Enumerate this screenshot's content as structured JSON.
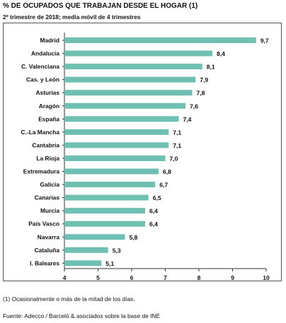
{
  "chart_data": {
    "type": "bar",
    "orientation": "horizontal",
    "title": "% DE OCUPADOS QUE TRABAJAN DESDE EL HOGAR (1)",
    "subtitle": "2º trimestre de 2018; media móvil de 4 trimestres",
    "categories": [
      "Madrid",
      "Andalucía",
      "C. Valenciana",
      "Cas. y León",
      "Asturias",
      "Aragón",
      "España",
      "C.-La Mancha",
      "Cantabria",
      "La Rioja",
      "Extremadura",
      "Galicia",
      "Canarias",
      "Murcia",
      "País Vasco",
      "Navarra",
      "Cataluña",
      "I. Baleares"
    ],
    "values": [
      9.7,
      8.4,
      8.1,
      7.9,
      7.8,
      7.6,
      7.4,
      7.1,
      7.1,
      7.0,
      6.8,
      6.7,
      6.5,
      6.4,
      6.4,
      5.8,
      5.3,
      5.1
    ],
    "value_labels": [
      "9,7",
      "8,4",
      "8,1",
      "7,9",
      "7,8",
      "7,6",
      "7,4",
      "7,1",
      "7,1",
      "7,0",
      "6,8",
      "6,7",
      "6,5",
      "6,4",
      "6,4",
      "5,8",
      "5,3",
      "5,1"
    ],
    "xlim": [
      4,
      10
    ],
    "xticks": [
      4,
      5,
      6,
      7,
      8,
      9,
      10
    ],
    "xlabel": "",
    "ylabel": "",
    "grid": false,
    "legend": "none",
    "bar_color": "#6fbfb2"
  },
  "footnote": "(1) Ocasionalmente o más de la mitad de los días.",
  "source": "Fuente: Adecco / Barceló & asociados sobre la base de INE"
}
